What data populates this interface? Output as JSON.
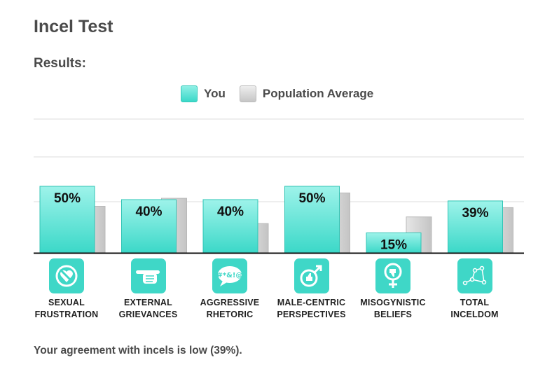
{
  "page": {
    "title": "Incel Test",
    "subtitle": "Results:",
    "summary": "Your agreement with incels is low (39%)."
  },
  "legend": {
    "you": "You",
    "population": "Population Average"
  },
  "colors": {
    "you": "#3fd7c7",
    "population": "#c8c8c8",
    "icon_bg": "#3fd7c7"
  },
  "chart_data": {
    "type": "bar",
    "categories": [
      "SEXUAL FRUSTRATION",
      "EXTERNAL GRIEVANCES",
      "AGGRESSIVE RHETORIC",
      "MALE-CENTRIC PERSPECTIVES",
      "MISOGYNISTIC BELIEFS",
      "TOTAL INCELDOM"
    ],
    "category_lines": [
      [
        "SEXUAL",
        "FRUSTRATION"
      ],
      [
        "EXTERNAL",
        "GRIEVANCES"
      ],
      [
        "AGGRESSIVE",
        "RHETORIC"
      ],
      [
        "MALE-CENTRIC",
        "PERSPECTIVES"
      ],
      [
        "MISOGYNISTIC",
        "BELIEFS"
      ],
      [
        "TOTAL",
        "INCELDOM"
      ]
    ],
    "icons": [
      "broken-heart-icon",
      "pointing-hand-icon",
      "swearing-speech-bubble-icon",
      "male-symbol-thumbs-up-icon",
      "female-symbol-thumbs-down-icon",
      "constellation-icon"
    ],
    "series": [
      {
        "name": "You",
        "values": [
          50,
          40,
          40,
          50,
          15,
          39
        ],
        "labels": [
          "50%",
          "40%",
          "40%",
          "50%",
          "15%",
          "39%"
        ]
      },
      {
        "name": "Population Average",
        "values": [
          35,
          41,
          22,
          45,
          27,
          34
        ]
      }
    ],
    "ylim": [
      0,
      100
    ],
    "grid": true,
    "legend_position": "top-center"
  }
}
